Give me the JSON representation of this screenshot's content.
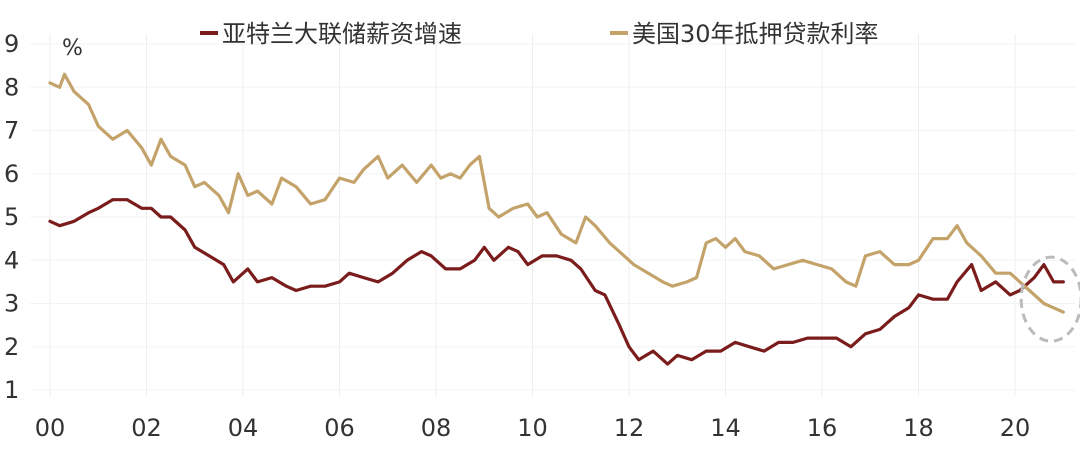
{
  "chart_data": {
    "type": "line",
    "ylabel": "%",
    "ylim": [
      1,
      9
    ],
    "xlim": [
      2000,
      2021
    ],
    "y_ticks": [
      "1",
      "2",
      "3",
      "4",
      "5",
      "6",
      "7",
      "8",
      "9"
    ],
    "x_ticks": [
      {
        "label": "00",
        "year": 2000
      },
      {
        "label": "02",
        "year": 2002
      },
      {
        "label": "04",
        "year": 2004
      },
      {
        "label": "06",
        "year": 2006
      },
      {
        "label": "08",
        "year": 2008
      },
      {
        "label": "10",
        "year": 2010
      },
      {
        "label": "12",
        "year": 2012
      },
      {
        "label": "14",
        "year": 2014
      },
      {
        "label": "16",
        "year": 2016
      },
      {
        "label": "18",
        "year": 2018
      },
      {
        "label": "20",
        "year": 2020
      }
    ],
    "grid": "vertical",
    "legend_position": "top",
    "series": [
      {
        "name": "亚特兰大联储薪资增速",
        "color": "#7b1c1c",
        "points": [
          [
            2000.0,
            4.9
          ],
          [
            2000.2,
            4.8
          ],
          [
            2000.5,
            4.9
          ],
          [
            2000.8,
            5.1
          ],
          [
            2001.0,
            5.2
          ],
          [
            2001.3,
            5.4
          ],
          [
            2001.6,
            5.4
          ],
          [
            2001.9,
            5.2
          ],
          [
            2002.1,
            5.2
          ],
          [
            2002.3,
            5.0
          ],
          [
            2002.5,
            5.0
          ],
          [
            2002.8,
            4.7
          ],
          [
            2003.0,
            4.3
          ],
          [
            2003.3,
            4.1
          ],
          [
            2003.6,
            3.9
          ],
          [
            2003.8,
            3.5
          ],
          [
            2004.1,
            3.8
          ],
          [
            2004.3,
            3.5
          ],
          [
            2004.6,
            3.6
          ],
          [
            2004.9,
            3.4
          ],
          [
            2005.1,
            3.3
          ],
          [
            2005.4,
            3.4
          ],
          [
            2005.7,
            3.4
          ],
          [
            2006.0,
            3.5
          ],
          [
            2006.2,
            3.7
          ],
          [
            2006.5,
            3.6
          ],
          [
            2006.8,
            3.5
          ],
          [
            2007.1,
            3.7
          ],
          [
            2007.4,
            4.0
          ],
          [
            2007.7,
            4.2
          ],
          [
            2007.9,
            4.1
          ],
          [
            2008.2,
            3.8
          ],
          [
            2008.5,
            3.8
          ],
          [
            2008.8,
            4.0
          ],
          [
            2009.0,
            4.3
          ],
          [
            2009.2,
            4.0
          ],
          [
            2009.5,
            4.3
          ],
          [
            2009.7,
            4.2
          ],
          [
            2009.9,
            3.9
          ],
          [
            2010.2,
            4.1
          ],
          [
            2010.5,
            4.1
          ],
          [
            2010.8,
            4.0
          ],
          [
            2011.0,
            3.8
          ],
          [
            2011.3,
            3.3
          ],
          [
            2011.5,
            3.2
          ],
          [
            2011.8,
            2.5
          ],
          [
            2012.0,
            2.0
          ],
          [
            2012.2,
            1.7
          ],
          [
            2012.5,
            1.9
          ],
          [
            2012.8,
            1.6
          ],
          [
            2013.0,
            1.8
          ],
          [
            2013.3,
            1.7
          ],
          [
            2013.6,
            1.9
          ],
          [
            2013.9,
            1.9
          ],
          [
            2014.2,
            2.1
          ],
          [
            2014.5,
            2.0
          ],
          [
            2014.8,
            1.9
          ],
          [
            2015.1,
            2.1
          ],
          [
            2015.4,
            2.1
          ],
          [
            2015.7,
            2.2
          ],
          [
            2016.0,
            2.2
          ],
          [
            2016.3,
            2.2
          ],
          [
            2016.6,
            2.0
          ],
          [
            2016.9,
            2.3
          ],
          [
            2017.2,
            2.4
          ],
          [
            2017.5,
            2.7
          ],
          [
            2017.8,
            2.9
          ],
          [
            2018.0,
            3.2
          ],
          [
            2018.3,
            3.1
          ],
          [
            2018.6,
            3.1
          ],
          [
            2018.8,
            3.5
          ],
          [
            2019.1,
            3.9
          ],
          [
            2019.3,
            3.3
          ],
          [
            2019.6,
            3.5
          ],
          [
            2019.9,
            3.2
          ],
          [
            2020.1,
            3.3
          ],
          [
            2020.4,
            3.6
          ],
          [
            2020.6,
            3.9
          ],
          [
            2020.8,
            3.5
          ],
          [
            2021.0,
            3.5
          ]
        ]
      },
      {
        "name": "美国30年抵押贷款利率",
        "color": "#c4a36a",
        "points": [
          [
            2000.0,
            8.1
          ],
          [
            2000.2,
            8.0
          ],
          [
            2000.3,
            8.3
          ],
          [
            2000.5,
            7.9
          ],
          [
            2000.8,
            7.6
          ],
          [
            2001.0,
            7.1
          ],
          [
            2001.3,
            6.8
          ],
          [
            2001.6,
            7.0
          ],
          [
            2001.9,
            6.6
          ],
          [
            2002.1,
            6.2
          ],
          [
            2002.3,
            6.8
          ],
          [
            2002.5,
            6.4
          ],
          [
            2002.8,
            6.2
          ],
          [
            2003.0,
            5.7
          ],
          [
            2003.2,
            5.8
          ],
          [
            2003.5,
            5.5
          ],
          [
            2003.7,
            5.1
          ],
          [
            2003.9,
            6.0
          ],
          [
            2004.1,
            5.5
          ],
          [
            2004.3,
            5.6
          ],
          [
            2004.6,
            5.3
          ],
          [
            2004.8,
            5.9
          ],
          [
            2005.1,
            5.7
          ],
          [
            2005.4,
            5.3
          ],
          [
            2005.7,
            5.4
          ],
          [
            2006.0,
            5.9
          ],
          [
            2006.3,
            5.8
          ],
          [
            2006.5,
            6.1
          ],
          [
            2006.8,
            6.4
          ],
          [
            2007.0,
            5.9
          ],
          [
            2007.3,
            6.2
          ],
          [
            2007.6,
            5.8
          ],
          [
            2007.9,
            6.2
          ],
          [
            2008.1,
            5.9
          ],
          [
            2008.3,
            6.0
          ],
          [
            2008.5,
            5.9
          ],
          [
            2008.7,
            6.2
          ],
          [
            2008.9,
            6.4
          ],
          [
            2009.1,
            5.2
          ],
          [
            2009.3,
            5.0
          ],
          [
            2009.6,
            5.2
          ],
          [
            2009.9,
            5.3
          ],
          [
            2010.1,
            5.0
          ],
          [
            2010.3,
            5.1
          ],
          [
            2010.6,
            4.6
          ],
          [
            2010.9,
            4.4
          ],
          [
            2011.1,
            5.0
          ],
          [
            2011.3,
            4.8
          ],
          [
            2011.6,
            4.4
          ],
          [
            2011.9,
            4.1
          ],
          [
            2012.1,
            3.9
          ],
          [
            2012.4,
            3.7
          ],
          [
            2012.7,
            3.5
          ],
          [
            2012.9,
            3.4
          ],
          [
            2013.2,
            3.5
          ],
          [
            2013.4,
            3.6
          ],
          [
            2013.6,
            4.4
          ],
          [
            2013.8,
            4.5
          ],
          [
            2014.0,
            4.3
          ],
          [
            2014.2,
            4.5
          ],
          [
            2014.4,
            4.2
          ],
          [
            2014.7,
            4.1
          ],
          [
            2015.0,
            3.8
          ],
          [
            2015.3,
            3.9
          ],
          [
            2015.6,
            4.0
          ],
          [
            2015.9,
            3.9
          ],
          [
            2016.2,
            3.8
          ],
          [
            2016.5,
            3.5
          ],
          [
            2016.7,
            3.4
          ],
          [
            2016.9,
            4.1
          ],
          [
            2017.2,
            4.2
          ],
          [
            2017.5,
            3.9
          ],
          [
            2017.8,
            3.9
          ],
          [
            2018.0,
            4.0
          ],
          [
            2018.3,
            4.5
          ],
          [
            2018.6,
            4.5
          ],
          [
            2018.8,
            4.8
          ],
          [
            2019.0,
            4.4
          ],
          [
            2019.3,
            4.1
          ],
          [
            2019.6,
            3.7
          ],
          [
            2019.9,
            3.7
          ],
          [
            2020.1,
            3.5
          ],
          [
            2020.3,
            3.3
          ],
          [
            2020.6,
            3.0
          ],
          [
            2020.8,
            2.9
          ],
          [
            2021.0,
            2.8
          ]
        ]
      }
    ],
    "annotations": [
      {
        "shape": "dashed-circle",
        "center": [
          2020.75,
          3.1
        ],
        "color": "#bbbbbb"
      }
    ]
  }
}
